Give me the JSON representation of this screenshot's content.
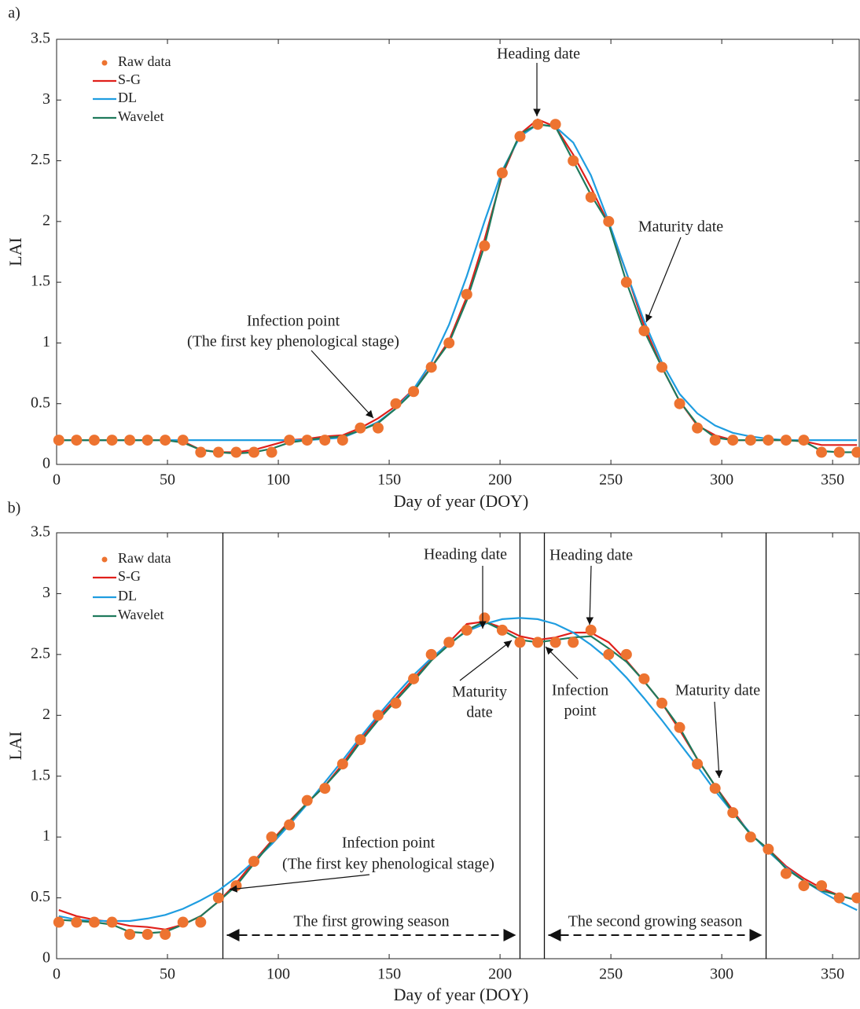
{
  "chart_data": [
    {
      "type": "line",
      "label": "a)",
      "xlabel": "Day of year (DOY)",
      "ylabel": "LAI",
      "xlim": [
        0,
        362
      ],
      "ylim": [
        0,
        3.5
      ],
      "xticks": [
        0,
        50,
        100,
        150,
        200,
        250,
        300,
        350
      ],
      "yticks": [
        0,
        0.5,
        1,
        1.5,
        2,
        2.5,
        3,
        3.5
      ],
      "x": [
        1,
        9,
        17,
        25,
        33,
        41,
        49,
        57,
        65,
        73,
        81,
        89,
        97,
        105,
        113,
        121,
        129,
        137,
        145,
        153,
        161,
        169,
        177,
        185,
        193,
        201,
        209,
        217,
        225,
        233,
        241,
        249,
        257,
        265,
        273,
        281,
        289,
        297,
        305,
        313,
        321,
        329,
        337,
        345,
        353,
        361
      ],
      "series": [
        {
          "name": "Raw data",
          "color": "#ed7330",
          "mode": "markers",
          "values": [
            0.2,
            0.2,
            0.2,
            0.2,
            0.2,
            0.2,
            0.2,
            0.2,
            0.1,
            0.1,
            0.1,
            0.1,
            0.1,
            0.2,
            0.2,
            0.2,
            0.2,
            0.3,
            0.3,
            0.5,
            0.6,
            0.8,
            1.0,
            1.4,
            1.8,
            2.4,
            2.7,
            2.8,
            2.8,
            2.5,
            2.2,
            2.0,
            1.5,
            1.1,
            0.8,
            0.5,
            0.3,
            0.2,
            0.2,
            0.2,
            0.2,
            0.2,
            0.2,
            0.1,
            0.1,
            0.1
          ]
        },
        {
          "name": "S-G",
          "color": "#e0201b",
          "mode": "line",
          "values": [
            0.2,
            0.2,
            0.2,
            0.2,
            0.2,
            0.2,
            0.2,
            0.19,
            0.12,
            0.1,
            0.1,
            0.12,
            0.16,
            0.2,
            0.21,
            0.23,
            0.24,
            0.3,
            0.38,
            0.48,
            0.62,
            0.8,
            1.02,
            1.38,
            1.85,
            2.38,
            2.72,
            2.84,
            2.78,
            2.55,
            2.28,
            1.98,
            1.58,
            1.14,
            0.8,
            0.52,
            0.32,
            0.24,
            0.2,
            0.2,
            0.2,
            0.2,
            0.19,
            0.16,
            0.16,
            0.16
          ]
        },
        {
          "name": "DL",
          "color": "#1f9de0",
          "mode": "line",
          "values": [
            0.2,
            0.2,
            0.2,
            0.2,
            0.2,
            0.2,
            0.2,
            0.2,
            0.2,
            0.2,
            0.2,
            0.2,
            0.2,
            0.2,
            0.2,
            0.21,
            0.22,
            0.28,
            0.35,
            0.46,
            0.62,
            0.84,
            1.15,
            1.55,
            2.0,
            2.42,
            2.7,
            2.8,
            2.78,
            2.65,
            2.38,
            2.0,
            1.58,
            1.18,
            0.84,
            0.58,
            0.42,
            0.32,
            0.26,
            0.23,
            0.21,
            0.2,
            0.2,
            0.2,
            0.2,
            0.2
          ]
        },
        {
          "name": "Wavelet",
          "color": "#1f7a5c",
          "mode": "line",
          "values": [
            0.2,
            0.2,
            0.2,
            0.2,
            0.2,
            0.2,
            0.2,
            0.18,
            0.12,
            0.1,
            0.09,
            0.1,
            0.13,
            0.18,
            0.2,
            0.22,
            0.23,
            0.28,
            0.34,
            0.46,
            0.6,
            0.8,
            1.0,
            1.35,
            1.8,
            2.4,
            2.72,
            2.8,
            2.78,
            2.5,
            2.22,
            1.98,
            1.5,
            1.1,
            0.8,
            0.52,
            0.33,
            0.22,
            0.2,
            0.2,
            0.2,
            0.2,
            0.19,
            0.11,
            0.1,
            0.1
          ]
        }
      ],
      "annotations": [
        {
          "text": [
            "Heading date"
          ]
        },
        {
          "text": [
            "Maturity date"
          ]
        },
        {
          "text": [
            "Infection point",
            "(The first key phenological stage)"
          ]
        }
      ]
    },
    {
      "type": "line",
      "label": "b)",
      "xlabel": "Day of year (DOY)",
      "ylabel": "LAI",
      "xlim": [
        0,
        362
      ],
      "ylim": [
        0,
        3.5
      ],
      "xticks": [
        0,
        50,
        100,
        150,
        200,
        250,
        300,
        350
      ],
      "yticks": [
        0,
        0.5,
        1,
        1.5,
        2,
        2.5,
        3,
        3.5
      ],
      "x": [
        1,
        9,
        17,
        25,
        33,
        41,
        49,
        57,
        65,
        73,
        81,
        89,
        97,
        105,
        113,
        121,
        129,
        137,
        145,
        153,
        161,
        169,
        177,
        185,
        193,
        201,
        209,
        217,
        225,
        233,
        241,
        249,
        257,
        265,
        273,
        281,
        289,
        297,
        305,
        313,
        321,
        329,
        337,
        345,
        353,
        361
      ],
      "series": [
        {
          "name": "Raw data",
          "color": "#ed7330",
          "mode": "markers",
          "values": [
            0.3,
            0.3,
            0.3,
            0.3,
            0.2,
            0.2,
            0.2,
            0.3,
            0.3,
            0.5,
            0.6,
            0.8,
            1.0,
            1.1,
            1.3,
            1.4,
            1.6,
            1.8,
            2.0,
            2.1,
            2.3,
            2.5,
            2.6,
            2.7,
            2.8,
            2.7,
            2.6,
            2.6,
            2.6,
            2.6,
            2.7,
            2.5,
            2.5,
            2.3,
            2.1,
            1.9,
            1.6,
            1.4,
            1.2,
            1.0,
            0.9,
            0.7,
            0.6,
            0.6,
            0.5,
            0.5
          ]
        },
        {
          "name": "S-G",
          "color": "#e0201b",
          "mode": "line",
          "values": [
            0.4,
            0.35,
            0.32,
            0.3,
            0.27,
            0.26,
            0.24,
            0.28,
            0.35,
            0.47,
            0.62,
            0.8,
            0.97,
            1.13,
            1.28,
            1.42,
            1.6,
            1.8,
            1.98,
            2.14,
            2.3,
            2.46,
            2.6,
            2.75,
            2.77,
            2.72,
            2.65,
            2.62,
            2.64,
            2.68,
            2.68,
            2.6,
            2.45,
            2.28,
            2.1,
            1.88,
            1.64,
            1.42,
            1.22,
            1.02,
            0.9,
            0.76,
            0.66,
            0.58,
            0.52,
            0.48
          ]
        },
        {
          "name": "DL",
          "color": "#1f9de0",
          "mode": "line",
          "values": [
            0.35,
            0.32,
            0.31,
            0.31,
            0.31,
            0.33,
            0.36,
            0.41,
            0.48,
            0.56,
            0.67,
            0.8,
            0.94,
            1.1,
            1.27,
            1.45,
            1.63,
            1.82,
            2.0,
            2.17,
            2.33,
            2.47,
            2.59,
            2.69,
            2.75,
            2.79,
            2.8,
            2.79,
            2.75,
            2.68,
            2.58,
            2.46,
            2.31,
            2.14,
            1.96,
            1.77,
            1.58,
            1.38,
            1.2,
            1.03,
            0.88,
            0.75,
            0.64,
            0.55,
            0.47,
            0.4
          ]
        },
        {
          "name": "Wavelet",
          "color": "#1f7a5c",
          "mode": "line",
          "values": [
            0.32,
            0.31,
            0.3,
            0.28,
            0.22,
            0.21,
            0.22,
            0.28,
            0.35,
            0.47,
            0.6,
            0.78,
            0.96,
            1.12,
            1.28,
            1.42,
            1.58,
            1.78,
            1.96,
            2.12,
            2.28,
            2.45,
            2.58,
            2.7,
            2.77,
            2.7,
            2.62,
            2.6,
            2.62,
            2.64,
            2.65,
            2.55,
            2.44,
            2.28,
            2.1,
            1.9,
            1.64,
            1.42,
            1.2,
            1.02,
            0.9,
            0.74,
            0.64,
            0.56,
            0.52,
            0.48
          ]
        }
      ],
      "vlines": [
        75,
        209,
        220,
        320
      ],
      "seasons": [
        {
          "text": "The first growing season"
        },
        {
          "text": "The second growing season"
        }
      ],
      "annotations": [
        {
          "text": [
            "Heading date"
          ]
        },
        {
          "text": [
            "Heading date"
          ]
        },
        {
          "text": [
            "Maturity",
            "date"
          ]
        },
        {
          "text": [
            "Infection",
            "point"
          ]
        },
        {
          "text": [
            "Maturity date"
          ]
        },
        {
          "text": [
            "Infection point",
            "(The first key phenological stage)"
          ]
        }
      ]
    }
  ]
}
